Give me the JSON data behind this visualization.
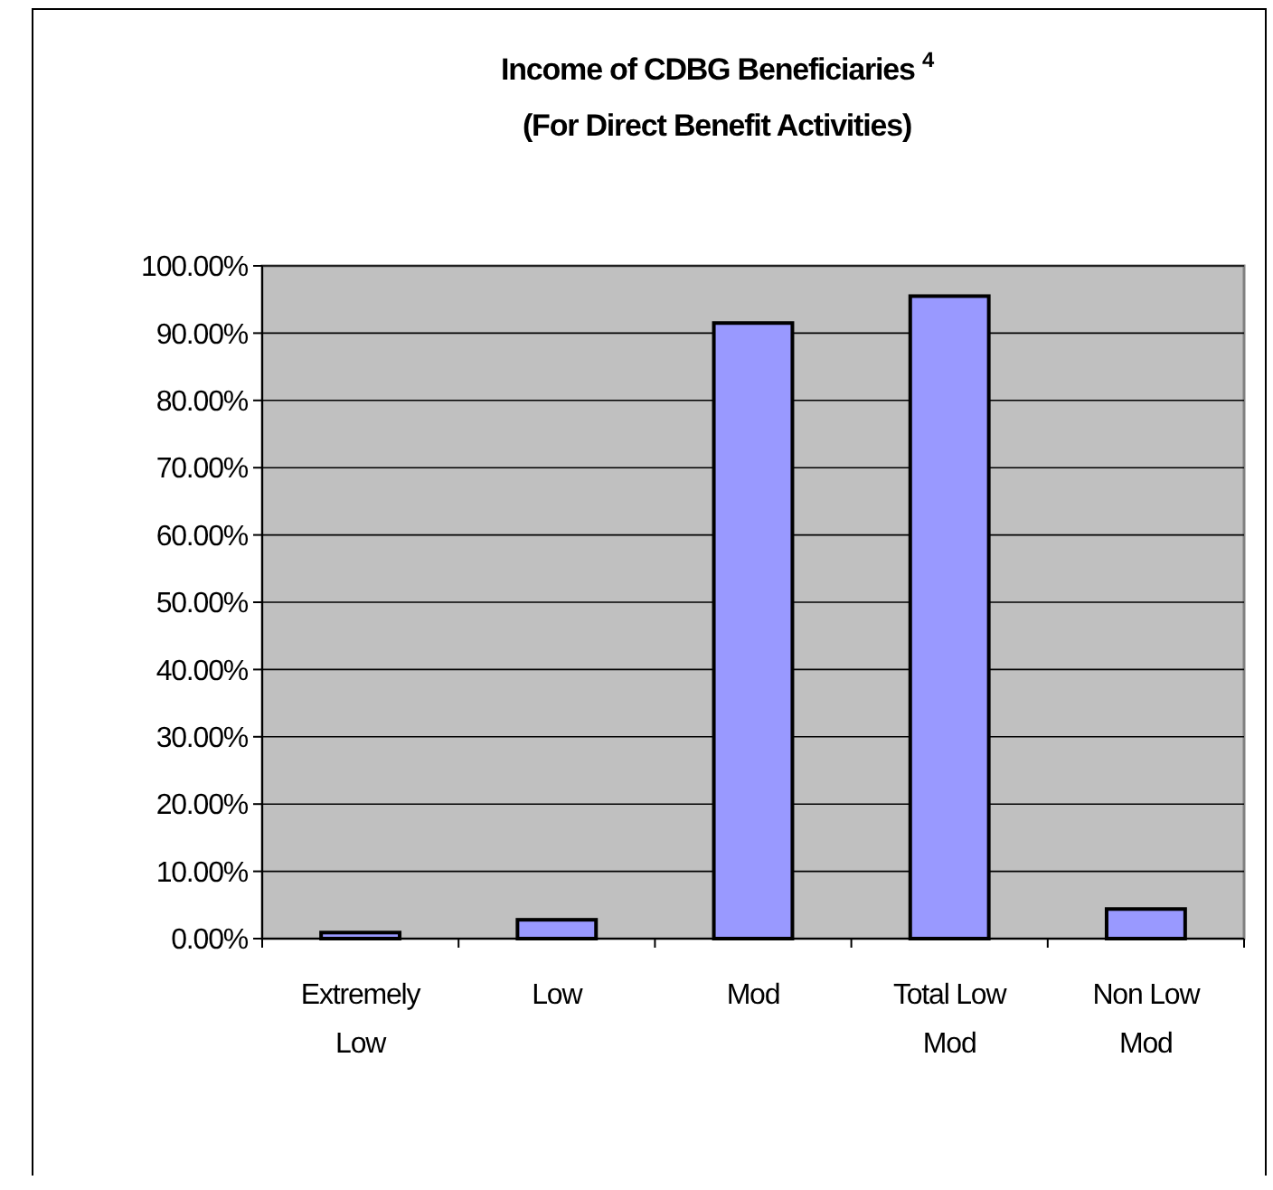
{
  "chart_data": {
    "type": "bar",
    "title": "Income of CDBG Beneficiaries $^{4}$",
    "subtitle": "(For Direct Benefit Activities)",
    "categories": [
      "Extremely Low",
      "Low",
      "Mod",
      "Total Low Mod",
      "Non Low Mod"
    ],
    "values": [
      0.9,
      2.8,
      91.5,
      95.5,
      4.4
    ],
    "color": "#9999ff",
    "ylim": [
      0,
      100
    ],
    "yticks": [
      {
        "value": 0,
        "label": "0.00%"
      },
      {
        "value": 10,
        "label": "10.00%"
      },
      {
        "value": 20,
        "label": "20.00%"
      },
      {
        "value": 30,
        "label": "30.00%"
      },
      {
        "value": 40,
        "label": "40.00%"
      },
      {
        "value": 50,
        "label": "50.00%"
      },
      {
        "value": 60,
        "label": "60.00%"
      },
      {
        "value": 70,
        "label": "70.00%"
      },
      {
        "value": 80,
        "label": "80.00%"
      },
      {
        "value": 90,
        "label": "90.00%"
      },
      {
        "value": 100,
        "label": "100.00%"
      }
    ],
    "grid": "y"
  }
}
